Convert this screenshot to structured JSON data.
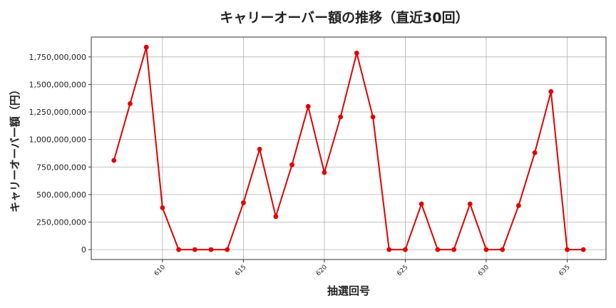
{
  "chart_data": {
    "type": "line",
    "title": "キャリーオーバー額の推移（直近30回）",
    "xlabel": "抽選回号",
    "ylabel": "キャリーオーバー額（円）",
    "xlim": [
      605.6,
      637.4
    ],
    "ylim": [
      -90000000,
      1930000000
    ],
    "xticks": [
      610,
      615,
      620,
      625,
      630,
      635
    ],
    "yticks": [
      0,
      250000000,
      500000000,
      750000000,
      1000000000,
      1250000000,
      1500000000,
      1750000000
    ],
    "ytick_labels": [
      "0",
      "250,000,000",
      "500,000,000",
      "750,000,000",
      "1,000,000,000",
      "1,250,000,000",
      "1,500,000,000",
      "1,750,000,000"
    ],
    "grid": true,
    "series": [
      {
        "color": "#e00000",
        "x": [
          607,
          608,
          609,
          610,
          611,
          612,
          613,
          614,
          615,
          616,
          617,
          618,
          619,
          620,
          621,
          622,
          623,
          624,
          625,
          626,
          627,
          628,
          629,
          630,
          631,
          632,
          633,
          634,
          635,
          636
        ],
        "y": [
          810000000,
          1325000000,
          1838000000,
          380000000,
          0,
          0,
          0,
          0,
          425000000,
          912000000,
          300000000,
          770000000,
          1300000000,
          700000000,
          1205000000,
          1785000000,
          1205000000,
          0,
          0,
          415000000,
          0,
          0,
          415000000,
          0,
          0,
          400000000,
          880000000,
          1435000000,
          0,
          0
        ]
      }
    ]
  }
}
